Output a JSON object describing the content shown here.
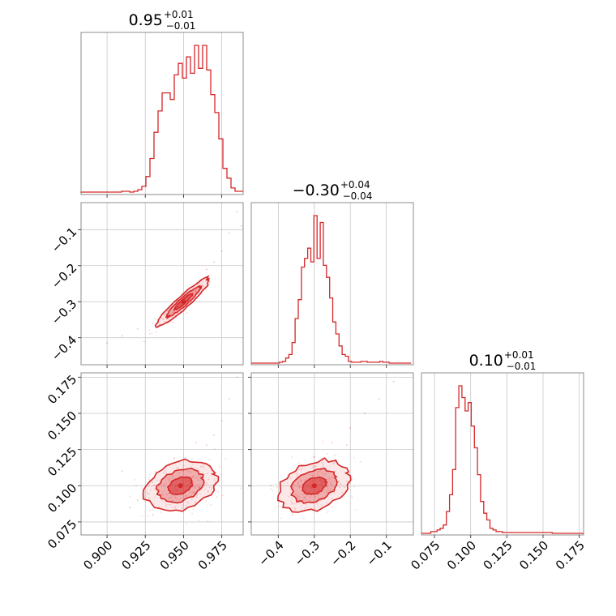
{
  "chart_data": {
    "type": "corner",
    "color": "#d62728",
    "grid": true,
    "parameters": [
      {
        "title": "0.95",
        "upper": "+0.01",
        "lower": "−0.01",
        "range": [
          0.883,
          0.989
        ],
        "ticks": [
          0.9,
          0.925,
          0.95,
          0.975
        ],
        "tick_labels": [
          "0.900",
          "0.925",
          "0.950",
          "0.975"
        ]
      },
      {
        "title": "−0.30",
        "upper": "+0.04",
        "lower": "−0.04",
        "range": [
          -0.475,
          -0.025
        ],
        "ticks": [
          -0.4,
          -0.3,
          -0.2,
          -0.1
        ],
        "tick_labels": [
          "−0.4",
          "−0.3",
          "−0.2",
          "−0.1"
        ]
      },
      {
        "title": "0.10",
        "upper": "+0.01",
        "lower": "−0.01",
        "range": [
          0.066,
          0.178
        ],
        "ticks": [
          0.075,
          0.1,
          0.125,
          0.15,
          0.175
        ],
        "tick_labels": [
          "0.075",
          "0.100",
          "0.125",
          "0.150",
          "0.175"
        ]
      }
    ],
    "histograms": [
      {
        "param": 0,
        "bin_start": 0.883,
        "bin_width": 0.00265,
        "counts": [
          0.5,
          0.5,
          0.5,
          0.5,
          0.5,
          0.5,
          0.5,
          0.5,
          0.5,
          0.5,
          1,
          1,
          0.5,
          1,
          2,
          4,
          10,
          21,
          37,
          50,
          61,
          61,
          57,
          72,
          79,
          70,
          83,
          73,
          90,
          76,
          90,
          75,
          60,
          49,
          33,
          15,
          9,
          3,
          1,
          1,
          1,
          2,
          1
        ]
      },
      {
        "param": 1,
        "bin_start": -0.475,
        "bin_width": 0.0087,
        "counts": [
          0,
          0,
          0,
          0,
          0,
          0,
          0,
          0,
          0,
          0.5,
          1,
          3,
          5,
          12,
          26,
          37,
          56,
          61,
          67,
          59,
          86,
          61,
          82,
          57,
          50,
          38,
          24,
          17,
          10,
          5,
          4,
          1,
          0.5,
          0.5,
          0.5,
          1,
          1,
          0.5,
          0.5,
          0.5,
          0.5,
          1,
          0.5,
          0.5,
          0,
          0,
          0,
          0,
          0,
          0,
          0
        ]
      },
      {
        "param": 2,
        "bin_start": 0.066,
        "bin_width": 0.00215,
        "counts": [
          0,
          0,
          0,
          1,
          1,
          2,
          3,
          5,
          13,
          23,
          38,
          75,
          88,
          81,
          73,
          78,
          64,
          51,
          35,
          19,
          12,
          8,
          3,
          2,
          1,
          1,
          0.5,
          0.5,
          0.5,
          0.5,
          0.5,
          0.5,
          0.5,
          0.5,
          0.5,
          0.5,
          0.5,
          0.5,
          0.5,
          0.5,
          0.5,
          0.5,
          0,
          0,
          0,
          0,
          0,
          0,
          0,
          0,
          0,
          0
        ]
      }
    ],
    "scatter_panels": [
      {
        "x_param": 0,
        "y_param": 1,
        "center": [
          0.95,
          -0.3
        ],
        "outer_samples": [
          [
            0.985,
            -0.05
          ],
          [
            0.98,
            -0.11
          ],
          [
            0.975,
            -0.16
          ],
          [
            0.97,
            -0.19
          ],
          [
            0.965,
            -0.21
          ],
          [
            0.94,
            -0.34
          ],
          [
            0.93,
            -0.36
          ],
          [
            0.92,
            -0.375
          ],
          [
            0.91,
            -0.395
          ],
          [
            0.9,
            -0.415
          ],
          [
            0.988,
            -0.09
          ]
        ]
      },
      {
        "x_param": 0,
        "y_param": 2,
        "center": [
          0.948,
          0.1
        ],
        "outer_samples": [
          [
            0.985,
            0.175
          ],
          [
            0.98,
            0.16
          ],
          [
            0.975,
            0.145
          ],
          [
            0.97,
            0.135
          ],
          [
            0.965,
            0.128
          ],
          [
            0.92,
            0.09
          ],
          [
            0.915,
            0.085
          ],
          [
            0.93,
            0.08
          ],
          [
            0.958,
            0.13
          ],
          [
            0.94,
            0.115
          ],
          [
            0.91,
            0.11
          ]
        ]
      },
      {
        "x_param": 1,
        "y_param": 2,
        "center": [
          -0.3,
          0.1
        ],
        "outer_samples": [
          [
            -0.08,
            0.172
          ],
          [
            -0.12,
            0.16
          ],
          [
            -0.16,
            0.15
          ],
          [
            -0.2,
            0.14
          ],
          [
            -0.21,
            0.128
          ],
          [
            -0.38,
            0.085
          ],
          [
            -0.4,
            0.09
          ],
          [
            -0.36,
            0.08
          ],
          [
            -0.25,
            0.13
          ],
          [
            -0.3,
            0.12
          ],
          [
            -0.42,
            0.1
          ]
        ]
      }
    ]
  }
}
